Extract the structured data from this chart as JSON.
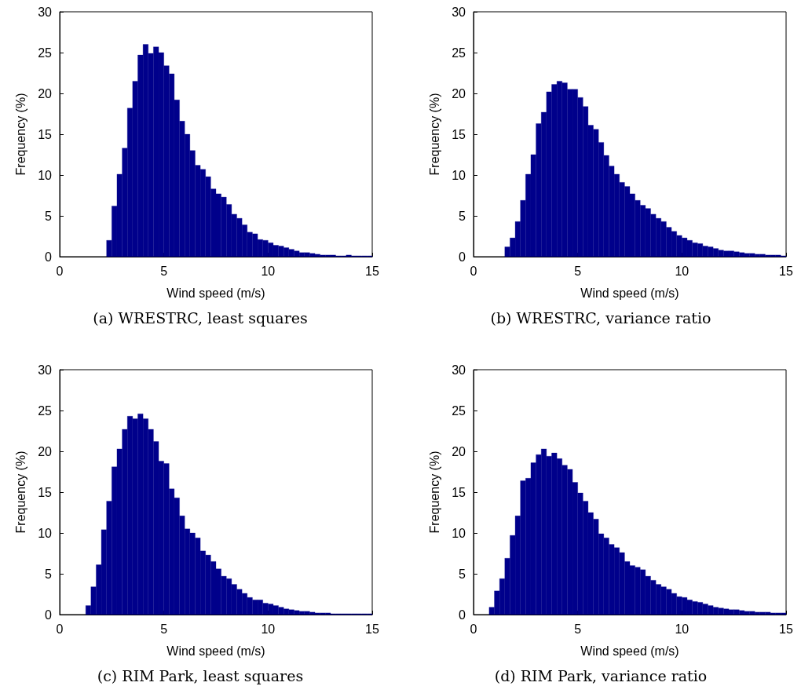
{
  "chart_data": [
    {
      "type": "histogram",
      "xlabel": "Wind speed (m/s)",
      "ylabel": "Frequency (%)",
      "annotations": [
        "(a) WRESTRC, least squares"
      ],
      "color": "#00008b",
      "xlim": [
        0,
        15
      ],
      "xticks": [
        0,
        5,
        10,
        15
      ],
      "ylim": [
        0,
        30
      ],
      "yticks": [
        0,
        5,
        10,
        15,
        20,
        25,
        30
      ],
      "bins": [
        2.25,
        2.5,
        2.75,
        3,
        3.25,
        3.5,
        3.75,
        4,
        4.25,
        4.5,
        4.75,
        5,
        5.25,
        5.5,
        5.75,
        6,
        6.25,
        6.5,
        6.75,
        7,
        7.25,
        7.5,
        7.75,
        8,
        8.25,
        8.5,
        8.75,
        9,
        9.25,
        9.5,
        9.75,
        10,
        10.25,
        10.5,
        10.75,
        11,
        11.25,
        11.5,
        11.75,
        12,
        12.25,
        12.5,
        12.75,
        13,
        13.25,
        13.5,
        13.75,
        14,
        14.25,
        14.5,
        14.75,
        15
      ],
      "values": [
        2.0,
        6.2,
        10.1,
        13.3,
        18.2,
        21.5,
        24.7,
        26,
        24.9,
        25.7,
        25.0,
        23.4,
        22.4,
        19.2,
        16.6,
        15.0,
        13.0,
        11.2,
        10.7,
        9.8,
        8.3,
        7.7,
        7.3,
        6.4,
        5.2,
        4.7,
        3.9,
        3.0,
        2.8,
        2.1,
        2.0,
        1.7,
        1.4,
        1.3,
        1.1,
        0.9,
        0.7,
        0.5,
        0.5,
        0.4,
        0.3,
        0.2,
        0.2,
        0.2,
        0.1,
        0.1,
        0.2,
        0.1,
        0.1,
        0.1,
        0.1
      ]
    },
    {
      "type": "histogram",
      "xlabel": "Wind speed (m/s)",
      "ylabel": "Frequency (%)",
      "annotations": [
        "(b) WRESTRC, variance ratio"
      ],
      "color": "#00008b",
      "xlim": [
        0,
        15
      ],
      "xticks": [
        0,
        5,
        10,
        15
      ],
      "ylim": [
        0,
        30
      ],
      "yticks": [
        0,
        5,
        10,
        15,
        20,
        25,
        30
      ],
      "bins": [
        1.5,
        1.75,
        2,
        2.25,
        2.5,
        2.75,
        3,
        3.25,
        3.5,
        3.75,
        4,
        4.25,
        4.5,
        4.75,
        5,
        5.25,
        5.5,
        5.75,
        6,
        6.25,
        6.5,
        6.75,
        7,
        7.25,
        7.5,
        7.75,
        8,
        8.25,
        8.5,
        8.75,
        9,
        9.25,
        9.5,
        9.75,
        10,
        10.25,
        10.5,
        10.75,
        11,
        11.25,
        11.5,
        11.75,
        12,
        12.25,
        12.5,
        12.75,
        13,
        13.25,
        13.5,
        13.75,
        14,
        14.25,
        14.5,
        14.75,
        15
      ],
      "values": [
        1.2,
        2.3,
        4.3,
        6.9,
        10.1,
        12.5,
        16.3,
        17.7,
        20.2,
        21.1,
        21.5,
        21.3,
        20.5,
        20.5,
        19.5,
        18.4,
        16.1,
        15.6,
        14.0,
        12.4,
        11.1,
        10.1,
        9.1,
        8.6,
        7.7,
        6.9,
        6.3,
        5.9,
        5.2,
        4.7,
        4.3,
        3.6,
        3.1,
        2.6,
        2.3,
        2.0,
        1.7,
        1.6,
        1.3,
        1.2,
        1.0,
        0.8,
        0.7,
        0.7,
        0.6,
        0.5,
        0.4,
        0.4,
        0.3,
        0.3,
        0.2,
        0.2,
        0.2,
        0.1
      ]
    },
    {
      "type": "histogram",
      "xlabel": "Wind speed (m/s)",
      "ylabel": "Frequency (%)",
      "annotations": [
        "(c) RIM Park, least squares"
      ],
      "color": "#00008b",
      "xlim": [
        0,
        15
      ],
      "xticks": [
        0,
        5,
        10,
        15
      ],
      "ylim": [
        0,
        30
      ],
      "yticks": [
        0,
        5,
        10,
        15,
        20,
        25,
        30
      ],
      "bins": [
        1.25,
        1.5,
        1.75,
        2,
        2.25,
        2.5,
        2.75,
        3,
        3.25,
        3.5,
        3.75,
        4,
        4.25,
        4.5,
        4.75,
        5,
        5.25,
        5.5,
        5.75,
        6,
        6.25,
        6.5,
        6.75,
        7,
        7.25,
        7.5,
        7.75,
        8,
        8.25,
        8.5,
        8.75,
        9,
        9.25,
        9.5,
        9.75,
        10,
        10.25,
        10.5,
        10.75,
        11,
        11.25,
        11.5,
        11.75,
        12,
        12.25,
        12.5,
        12.75,
        13,
        13.25,
        13.5,
        13.75,
        14,
        14.25,
        14.5,
        14.75,
        15
      ],
      "values": [
        1.1,
        3.4,
        6.1,
        10.4,
        13.9,
        18.1,
        20.3,
        22.7,
        24.3,
        24.0,
        24.6,
        24.0,
        22.7,
        21.2,
        18.8,
        18.5,
        15.4,
        14.3,
        12.1,
        10.5,
        10.0,
        9.4,
        7.8,
        7.3,
        6.5,
        5.6,
        4.7,
        4.4,
        3.7,
        3.1,
        2.6,
        2.1,
        1.8,
        1.8,
        1.4,
        1.3,
        1.1,
        0.9,
        0.7,
        0.6,
        0.5,
        0.4,
        0.4,
        0.3,
        0.2,
        0.2,
        0.2,
        0.1,
        0.1,
        0.1,
        0.1,
        0.1,
        0.1,
        0.1,
        0.1
      ]
    },
    {
      "type": "histogram",
      "xlabel": "Wind speed (m/s)",
      "ylabel": "Frequency (%)",
      "annotations": [
        "(d) RIM Park, variance ratio"
      ],
      "color": "#00008b",
      "xlim": [
        0,
        15
      ],
      "xticks": [
        0,
        5,
        10,
        15
      ],
      "ylim": [
        0,
        30
      ],
      "yticks": [
        0,
        5,
        10,
        15,
        20,
        25,
        30
      ],
      "bins": [
        0.75,
        1,
        1.25,
        1.5,
        1.75,
        2,
        2.25,
        2.5,
        2.75,
        3,
        3.25,
        3.5,
        3.75,
        4,
        4.25,
        4.5,
        4.75,
        5,
        5.25,
        5.5,
        5.75,
        6,
        6.25,
        6.5,
        6.75,
        7,
        7.25,
        7.5,
        7.75,
        8,
        8.25,
        8.5,
        8.75,
        9,
        9.25,
        9.5,
        9.75,
        10,
        10.25,
        10.5,
        10.75,
        11,
        11.25,
        11.5,
        11.75,
        12,
        12.25,
        12.5,
        12.75,
        13,
        13.25,
        13.5,
        13.75,
        14,
        14.25,
        14.5,
        14.75,
        15
      ],
      "values": [
        0.9,
        2.9,
        4.4,
        6.9,
        9.7,
        12.1,
        16.4,
        16.7,
        18.6,
        19.6,
        20.3,
        19.4,
        19.8,
        19.1,
        18.3,
        17.8,
        16.2,
        14.9,
        13.9,
        12.5,
        11.7,
        9.9,
        9.4,
        8.6,
        8.2,
        7.6,
        6.5,
        6.0,
        5.8,
        5.5,
        4.7,
        4.2,
        3.7,
        3.4,
        3.1,
        2.6,
        2.2,
        2.1,
        1.8,
        1.6,
        1.5,
        1.3,
        1.1,
        0.9,
        0.8,
        0.7,
        0.6,
        0.6,
        0.5,
        0.4,
        0.4,
        0.3,
        0.3,
        0.3,
        0.2,
        0.2,
        0.2
      ]
    }
  ]
}
